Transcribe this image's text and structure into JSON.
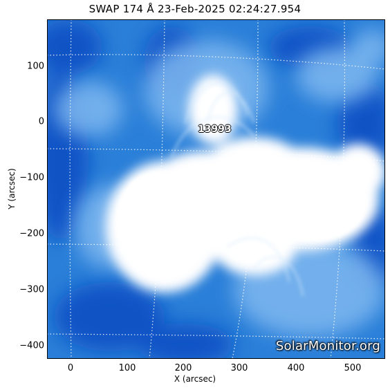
{
  "title": "SWAP 174 Å 23-Feb-2025 02:24:27.954",
  "axes": {
    "xlabel": "X (arcsec)",
    "ylabel": "Y (arcsec)",
    "xticks": [
      "0",
      "100",
      "200",
      "300",
      "400",
      "500"
    ],
    "yticks": [
      "100",
      "0",
      "−100",
      "−200",
      "−300",
      "−400"
    ]
  },
  "region_label": "13993",
  "watermark": "SolarMonitor.org",
  "colors": {
    "background": "#ffffff",
    "dark_blue": "#0b4fc4",
    "mid_blue": "#2a7fd8",
    "light_blue": "#7fb8f0",
    "bright": "#ffffff"
  }
}
